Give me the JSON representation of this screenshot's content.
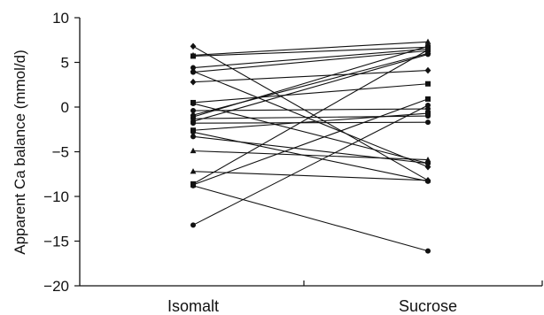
{
  "chart_data": {
    "type": "line",
    "categories": [
      "Isomalt",
      "Sucrose"
    ],
    "ylabel": "Apparent Ca balance (mmol/d)",
    "ylim": [
      -20,
      10
    ],
    "yticks": [
      10,
      5,
      0,
      -5,
      -10,
      -15,
      -20
    ],
    "ytick_labels": [
      "10",
      "5",
      "0",
      "−5",
      "−10",
      "−15",
      "−20"
    ],
    "grid": false,
    "series": [
      {
        "values": [
          6.8,
          -8.2
        ],
        "marker": "diamond"
      },
      {
        "values": [
          5.8,
          7.3
        ],
        "marker": "triangle"
      },
      {
        "values": [
          5.7,
          6.7
        ],
        "marker": "square"
      },
      {
        "values": [
          4.4,
          6.5
        ],
        "marker": "circle"
      },
      {
        "values": [
          4.0,
          -6.7
        ],
        "marker": "diamond"
      },
      {
        "values": [
          3.9,
          6.3
        ],
        "marker": "circle"
      },
      {
        "values": [
          2.8,
          4.1
        ],
        "marker": "diamond"
      },
      {
        "values": [
          0.5,
          2.6
        ],
        "marker": "square"
      },
      {
        "values": [
          0.4,
          -6.3
        ],
        "marker": "circle"
      },
      {
        "values": [
          -0.4,
          -0.2
        ],
        "marker": "circle"
      },
      {
        "values": [
          -0.9,
          6.0
        ],
        "marker": "diamond"
      },
      {
        "values": [
          -1.1,
          6.8
        ],
        "marker": "circle"
      },
      {
        "values": [
          -1.3,
          -1.0
        ],
        "marker": "circle"
      },
      {
        "values": [
          -1.6,
          5.9
        ],
        "marker": "circle"
      },
      {
        "values": [
          -1.8,
          -1.7
        ],
        "marker": "circle"
      },
      {
        "values": [
          -2.6,
          -0.7
        ],
        "marker": "square"
      },
      {
        "values": [
          -2.8,
          -8.3
        ],
        "marker": "circle"
      },
      {
        "values": [
          -3.3,
          -6.3
        ],
        "marker": "circle"
      },
      {
        "values": [
          -4.9,
          -5.9
        ],
        "marker": "triangle"
      },
      {
        "values": [
          -7.2,
          -8.2
        ],
        "marker": "triangle"
      },
      {
        "values": [
          -8.6,
          6.4
        ],
        "marker": "square"
      },
      {
        "values": [
          -8.7,
          0.9
        ],
        "marker": "square"
      },
      {
        "values": [
          -8.8,
          -16.1
        ],
        "marker": "circle"
      },
      {
        "values": [
          -13.2,
          0.2
        ],
        "marker": "circle"
      }
    ]
  }
}
